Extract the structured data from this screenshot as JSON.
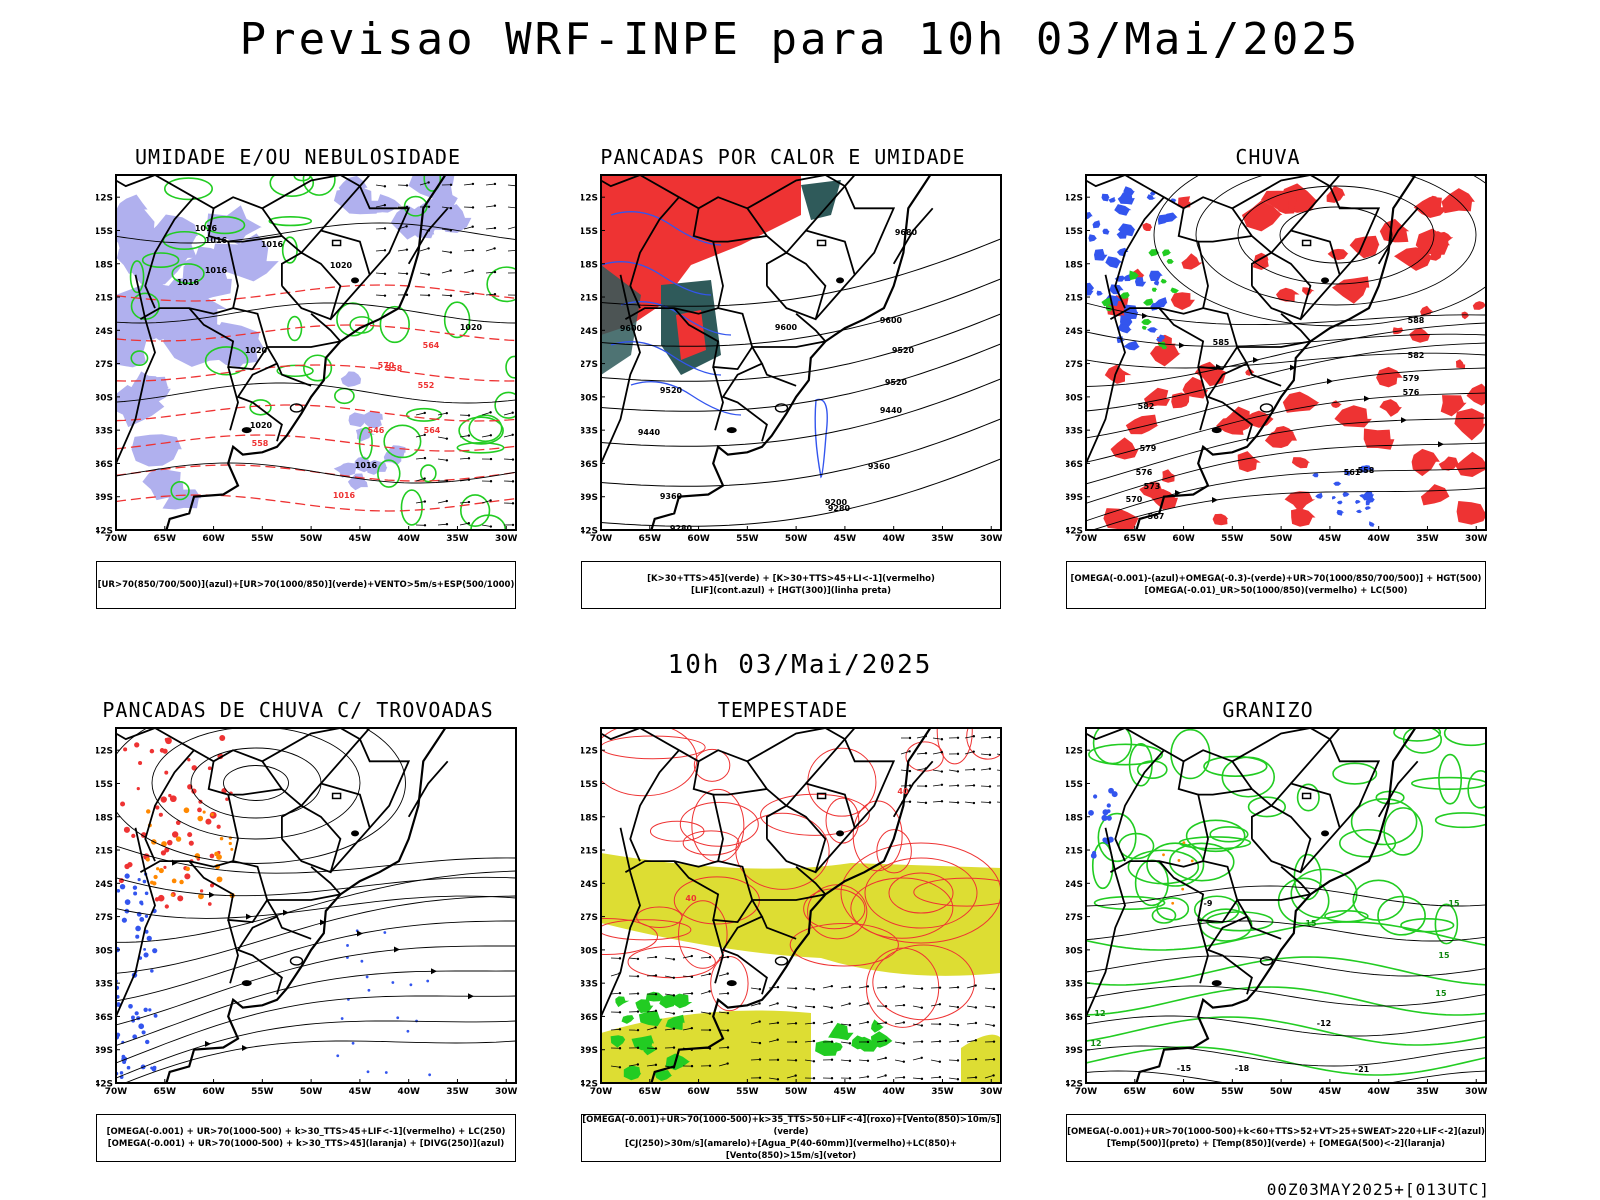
{
  "title": "Previsao WRF-INPE  para 10h 03/Mai/2025",
  "middle_title": "10h 03/Mai/2025",
  "footer": "00Z03MAY2025+[013UTC]",
  "axes": {
    "lat_labels": [
      "12S",
      "15S",
      "18S",
      "21S",
      "24S",
      "27S",
      "30S",
      "33S",
      "36S",
      "39S",
      "42S"
    ],
    "lon_labels": [
      "70W",
      "65W",
      "60W",
      "55W",
      "50W",
      "45W",
      "40W",
      "35W",
      "30W"
    ]
  },
  "colors": {
    "blue": "#3355ee",
    "light_blue": "#b0b0ee",
    "green": "#22cc22",
    "red": "#ee3333",
    "dark_teal": "#2f5a5a",
    "yellow": "#dddd33",
    "orange": "#ff8800"
  },
  "panels": [
    {
      "title": "UMIDADE E/OU NEBULOSIDADE",
      "legend_lines": [
        "[UR>70(850/700/500)](azul)+[UR>70(1000/850)](verde)+VENTO>5m/s+ESP(500/1000)"
      ],
      "contour_labels": [
        "1016",
        "1016",
        "1016",
        "1016",
        "1016",
        "1020",
        "1020",
        "1020",
        "1020",
        "1016",
        "1016",
        "570",
        "564",
        "558",
        "552",
        "546",
        "558",
        "564"
      ]
    },
    {
      "title": "PANCADAS POR CALOR E UMIDADE",
      "legend_lines": [
        "[K>30+TTS>45](verde) + [K>30+TTS>45+LI<-1](vermelho)",
        "[LIF](cont.azul) + [HGT(300)](linha preta)"
      ],
      "contour_labels": [
        "9680",
        "9600",
        "9600",
        "9520",
        "9520",
        "9440",
        "9360",
        "9280",
        "9200",
        "9520",
        "9600",
        "9440",
        "9360",
        "9280"
      ]
    },
    {
      "title": "CHUVA",
      "legend_lines": [
        "[OMEGA(-0.001)-(azul)+OMEGA(-0.3)-(verde)+UR>70(1000/850/700/500)] + HGT(500)",
        "[OMEGA(-0.01)_UR>50(1000/850)(vermelho) + LC(500)"
      ],
      "contour_labels": [
        "588",
        "585",
        "582",
        "579",
        "576",
        "582",
        "579",
        "576",
        "573",
        "570",
        "567",
        "564",
        "561",
        "558"
      ]
    },
    {
      "title": "PANCADAS DE CHUVA C/ TROVOADAS",
      "legend_lines": [
        "[OMEGA(-0.001) + UR>70(1000-500) + k>30_TTS>45+LIF<-1](vermelho) + LC(250)",
        "[OMEGA(-0.001) + UR>70(1000-500) + k>30_TTS>45](laranja) + [DIVG(250)](azul)"
      ],
      "contour_labels": []
    },
    {
      "title": "TEMPESTADE",
      "legend_lines": [
        "[OMEGA(-0.001)+UR>70(1000-500)+k>35_TTS>50+LIF<-4](roxo)+[Vento(850)>10m/s](verde)",
        "[CJ(250)>30m/s](amarelo)+[Agua_P(40-60mm)](vermelho)+LC(850)+[Vento(850)>15m/s](vetor)"
      ],
      "contour_labels": [
        "40",
        "40"
      ]
    },
    {
      "title": "GRANIZO",
      "legend_lines": [
        "[OMEGA(-0.001)+UR>70(1000-500)+k<60+TTS>52+VT>25+SWEAT>220+LIF<-2](azul)",
        "[Temp(500)](preto) + [Temp(850)](verde) + [OMEGA(500)<-2](laranja)"
      ],
      "contour_labels": [
        "-9",
        "-12",
        "-15",
        "-18",
        "-21",
        "15",
        "15",
        "15",
        "12",
        "12",
        "15"
      ]
    }
  ]
}
